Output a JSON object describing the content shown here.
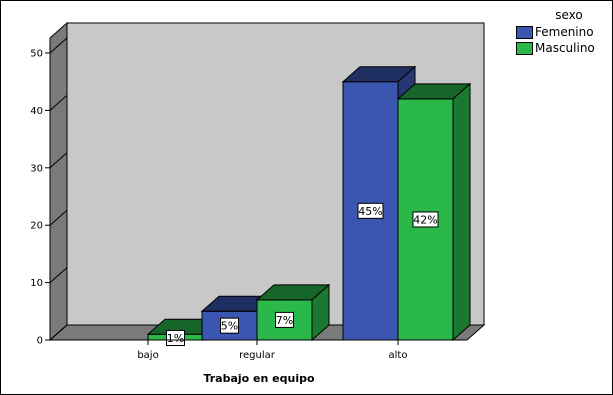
{
  "chart_data": {
    "type": "bar",
    "categories": [
      "bajo",
      "regular",
      "alto"
    ],
    "series": [
      {
        "name": "Femenino",
        "values": [
          0,
          5,
          45
        ],
        "labels": [
          "",
          "5%",
          "45%"
        ]
      },
      {
        "name": "Masculino",
        "values": [
          1,
          7,
          42
        ],
        "labels": [
          "1%",
          "7%",
          "42%"
        ]
      }
    ],
    "xlabel": "Trabajo en equipo",
    "ylabel": "",
    "ylim": [
      0,
      50
    ],
    "yticks": [
      0,
      10,
      20,
      30,
      40,
      50
    ],
    "legend_title": "sexo",
    "legend_position": "top-right",
    "three_d": true,
    "colors": {
      "Femenino": "#3b56b0",
      "Masculino": "#2ab84a",
      "wall": "#c8c8c8",
      "side_wall": "#7a7a7a"
    }
  }
}
